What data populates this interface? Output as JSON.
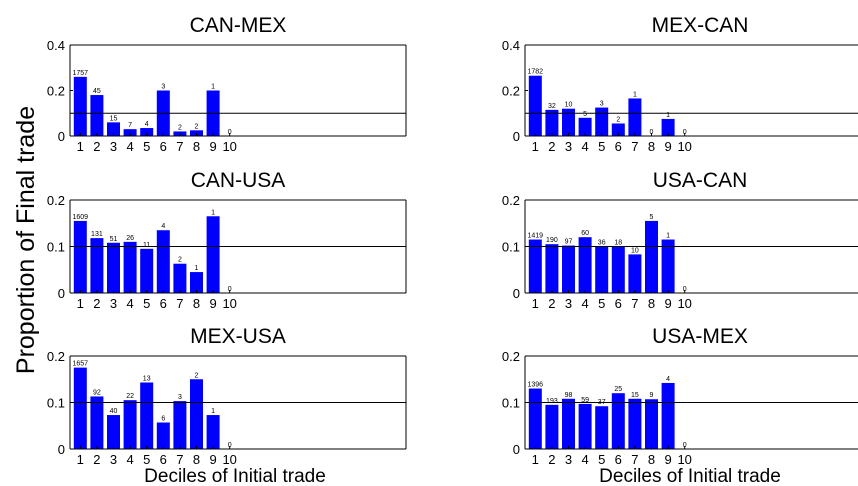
{
  "figure": {
    "ylabel": "Proportion of Final trade",
    "xlabel_left": "Deciles of Initial trade",
    "xlabel_right": "Deciles of Initial trade"
  },
  "colors": {
    "bar": "#0000ff",
    "axis": "#000000",
    "refline": "#000000"
  },
  "chart_data": [
    {
      "type": "bar",
      "title": "CAN-MEX",
      "categories": [
        "1",
        "2",
        "3",
        "4",
        "5",
        "6",
        "7",
        "8",
        "9",
        "10"
      ],
      "values": [
        0.26,
        0.18,
        0.06,
        0.03,
        0.035,
        0.2,
        0.02,
        0.025,
        0.2,
        0
      ],
      "bar_labels": [
        "1757",
        "45",
        "15",
        "7",
        "4",
        "3",
        "2",
        "2",
        "1",
        "0"
      ],
      "ylim": [
        0,
        0.4
      ],
      "yticks": [
        "0",
        "0.2",
        "0.4"
      ],
      "yticks_values": [
        0,
        0.2,
        0.4
      ],
      "reference_line": 0.1,
      "xlabel": "",
      "ylabel": ""
    },
    {
      "type": "bar",
      "title": "MEX-CAN",
      "categories": [
        "1",
        "2",
        "3",
        "4",
        "5",
        "6",
        "7",
        "8",
        "9",
        "10"
      ],
      "values": [
        0.265,
        0.115,
        0.12,
        0.08,
        0.125,
        0.055,
        0.165,
        0,
        0.075,
        0
      ],
      "bar_labels": [
        "1782",
        "32",
        "10",
        "5",
        "3",
        "2",
        "1",
        "0",
        "1",
        "0"
      ],
      "ylim": [
        0,
        0.4
      ],
      "yticks": [
        "0",
        "0.2",
        "0.4"
      ],
      "yticks_values": [
        0,
        0.2,
        0.4
      ],
      "reference_line": 0.1,
      "xlabel": "",
      "ylabel": ""
    },
    {
      "type": "bar",
      "title": "CAN-USA",
      "categories": [
        "1",
        "2",
        "3",
        "4",
        "5",
        "6",
        "7",
        "8",
        "9",
        "10"
      ],
      "values": [
        0.155,
        0.118,
        0.108,
        0.11,
        0.095,
        0.135,
        0.063,
        0.045,
        0.165,
        0
      ],
      "bar_labels": [
        "1609",
        "131",
        "51",
        "26",
        "11",
        "4",
        "2",
        "1",
        "1",
        "0"
      ],
      "ylim": [
        0,
        0.2
      ],
      "yticks": [
        "0",
        "0.1",
        "0.2"
      ],
      "yticks_values": [
        0,
        0.1,
        0.2
      ],
      "reference_line": 0.1,
      "xlabel": "",
      "ylabel": ""
    },
    {
      "type": "bar",
      "title": "USA-CAN",
      "categories": [
        "1",
        "2",
        "3",
        "4",
        "5",
        "6",
        "7",
        "8",
        "9",
        "10"
      ],
      "values": [
        0.115,
        0.105,
        0.102,
        0.12,
        0.1,
        0.1,
        0.083,
        0.155,
        0.115,
        0
      ],
      "bar_labels": [
        "1419",
        "190",
        "97",
        "60",
        "36",
        "18",
        "10",
        "5",
        "1",
        "0"
      ],
      "ylim": [
        0,
        0.2
      ],
      "yticks": [
        "0",
        "0.1",
        "0.2"
      ],
      "yticks_values": [
        0,
        0.1,
        0.2
      ],
      "reference_line": 0.1,
      "xlabel": "",
      "ylabel": ""
    },
    {
      "type": "bar",
      "title": "MEX-USA",
      "categories": [
        "1",
        "2",
        "3",
        "4",
        "5",
        "6",
        "7",
        "8",
        "9",
        "10"
      ],
      "values": [
        0.175,
        0.113,
        0.073,
        0.105,
        0.143,
        0.057,
        0.103,
        0.15,
        0.073,
        0
      ],
      "bar_labels": [
        "1657",
        "92",
        "40",
        "22",
        "13",
        "6",
        "3",
        "2",
        "1",
        "0"
      ],
      "ylim": [
        0,
        0.2
      ],
      "yticks": [
        "0",
        "0.1",
        "0.2"
      ],
      "yticks_values": [
        0,
        0.1,
        0.2
      ],
      "reference_line": 0.1,
      "xlabel": "",
      "ylabel": ""
    },
    {
      "type": "bar",
      "title": "USA-MEX",
      "categories": [
        "1",
        "2",
        "3",
        "4",
        "5",
        "6",
        "7",
        "8",
        "9",
        "10"
      ],
      "values": [
        0.13,
        0.095,
        0.108,
        0.097,
        0.092,
        0.12,
        0.108,
        0.107,
        0.142,
        0
      ],
      "bar_labels": [
        "1396",
        "193",
        "98",
        "59",
        "37",
        "25",
        "15",
        "9",
        "4",
        "0"
      ],
      "ylim": [
        0,
        0.2
      ],
      "yticks": [
        "0",
        "0.1",
        "0.2"
      ],
      "yticks_values": [
        0,
        0.1,
        0.2
      ],
      "reference_line": 0.1,
      "xlabel": "",
      "ylabel": ""
    }
  ]
}
